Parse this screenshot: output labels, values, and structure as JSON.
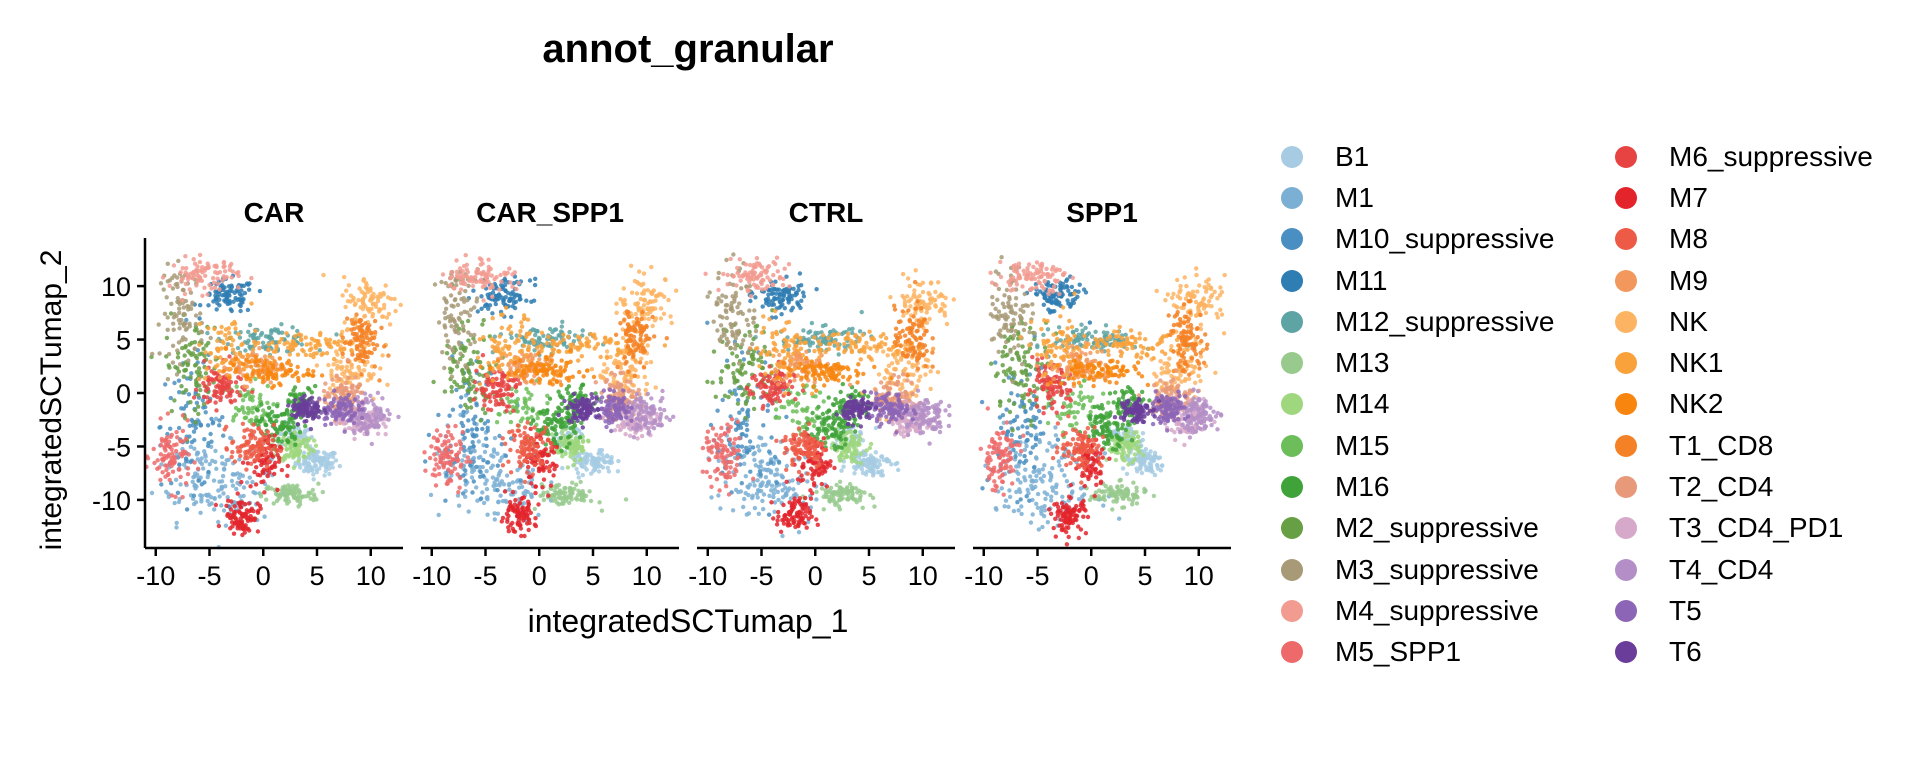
{
  "chart_data": {
    "type": "scatter",
    "title": "annot_granular",
    "xlabel": "integratedSCTumap_1",
    "ylabel": "integratedSCTumap_2",
    "xlim": [
      -11,
      13
    ],
    "ylim": [
      -14.5,
      14.5
    ],
    "xticks": [
      -10,
      -5,
      0,
      5,
      10
    ],
    "yticks": [
      10,
      5,
      0,
      -5,
      -10
    ],
    "xtick_labels": [
      "-10",
      "-5",
      "0",
      "5",
      "10"
    ],
    "ytick_labels": [
      "10",
      "5",
      "0",
      "-5",
      "-10"
    ],
    "grid": false,
    "legend_position": "right",
    "panels": [
      "CAR",
      "CAR_SPP1",
      "CTRL",
      "SPP1"
    ],
    "series": [
      {
        "name": "B1",
        "color": "#a6cbe3",
        "clusters": [
          {
            "x": 5.0,
            "y": -6.5,
            "sx": 1.0,
            "sy": 0.6,
            "w": 1.0
          },
          {
            "x": 3.0,
            "y": -4.0,
            "sx": 0.8,
            "sy": 0.6,
            "w": 0.4
          }
        ]
      },
      {
        "name": "M1",
        "color": "#7bafd4",
        "clusters": [
          {
            "x": -6.0,
            "y": -7.5,
            "sx": 2.0,
            "sy": 2.2,
            "w": 1.0
          },
          {
            "x": -2.5,
            "y": -9.0,
            "sx": 1.6,
            "sy": 1.6,
            "w": 0.7
          }
        ]
      },
      {
        "name": "M10_suppressive",
        "color": "#4a8fc1",
        "clusters": [
          {
            "x": -6.5,
            "y": -3.0,
            "sx": 1.5,
            "sy": 3.0,
            "w": 1.0
          }
        ]
      },
      {
        "name": "M11",
        "color": "#2e7db3",
        "clusters": [
          {
            "x": -3.2,
            "y": 9.0,
            "sx": 1.2,
            "sy": 0.8,
            "w": 1.0
          }
        ]
      },
      {
        "name": "M12_suppressive",
        "color": "#5ea4a5",
        "clusters": [
          {
            "x": 0.5,
            "y": 5.0,
            "sx": 2.0,
            "sy": 0.6,
            "w": 1.0
          }
        ]
      },
      {
        "name": "M13",
        "color": "#98ca8e",
        "clusters": [
          {
            "x": 2.5,
            "y": -9.5,
            "sx": 1.3,
            "sy": 0.5,
            "w": 1.0
          }
        ]
      },
      {
        "name": "M14",
        "color": "#9fd77f",
        "clusters": [
          {
            "x": 3.0,
            "y": -5.0,
            "sx": 0.8,
            "sy": 0.7,
            "w": 1.0
          }
        ]
      },
      {
        "name": "M15",
        "color": "#6dbe5a",
        "clusters": [
          {
            "x": -1.5,
            "y": -1.5,
            "sx": 1.2,
            "sy": 1.2,
            "w": 0.6
          }
        ]
      },
      {
        "name": "M16",
        "color": "#3fa33a",
        "clusters": [
          {
            "x": 1.5,
            "y": -3.0,
            "sx": 1.0,
            "sy": 1.0,
            "w": 1.0
          },
          {
            "x": 3.5,
            "y": -1.0,
            "sx": 0.8,
            "sy": 0.8,
            "w": 0.6
          }
        ]
      },
      {
        "name": "M2_suppressive",
        "color": "#669f44",
        "clusters": [
          {
            "x": -6.5,
            "y": 2.5,
            "sx": 1.3,
            "sy": 2.2,
            "w": 1.0
          }
        ]
      },
      {
        "name": "M3_suppressive",
        "color": "#a89a77",
        "clusters": [
          {
            "x": -7.5,
            "y": 7.5,
            "sx": 1.0,
            "sy": 2.2,
            "w": 1.0
          }
        ]
      },
      {
        "name": "M4_suppressive",
        "color": "#f29b90",
        "clusters": [
          {
            "x": -5.5,
            "y": 11.0,
            "sx": 1.6,
            "sy": 0.8,
            "w": 1.0
          }
        ]
      },
      {
        "name": "M5_SPP1",
        "color": "#ee6a6a",
        "clusters": [
          {
            "x": -8.5,
            "y": -6.0,
            "sx": 0.9,
            "sy": 1.5,
            "w": 1.0
          }
        ]
      },
      {
        "name": "M6_suppressive",
        "color": "#e84343",
        "clusters": [
          {
            "x": -4.0,
            "y": 0.5,
            "sx": 1.0,
            "sy": 1.0,
            "w": 1.0
          }
        ]
      },
      {
        "name": "M7",
        "color": "#e3242b",
        "clusters": [
          {
            "x": -2.0,
            "y": -11.5,
            "sx": 0.8,
            "sy": 0.8,
            "w": 1.0
          },
          {
            "x": 0.0,
            "y": -6.5,
            "sx": 0.8,
            "sy": 1.2,
            "w": 0.8
          }
        ]
      },
      {
        "name": "M8",
        "color": "#ed5a45",
        "clusters": [
          {
            "x": -1.0,
            "y": -5.0,
            "sx": 1.0,
            "sy": 1.0,
            "w": 1.0
          }
        ]
      },
      {
        "name": "M9",
        "color": "#f2985d",
        "clusters": [
          {
            "x": -1.0,
            "y": 2.5,
            "sx": 1.5,
            "sy": 0.8,
            "w": 1.0
          }
        ]
      },
      {
        "name": "NK",
        "color": "#fdb462",
        "clusters": [
          {
            "x": 10.0,
            "y": 8.5,
            "sx": 1.3,
            "sy": 1.2,
            "w": 1.0
          },
          {
            "x": 8.0,
            "y": 2.0,
            "sx": 1.3,
            "sy": 1.5,
            "w": 1.0
          }
        ]
      },
      {
        "name": "NK1",
        "color": "#f9a23b",
        "clusters": [
          {
            "x": 3.5,
            "y": 4.5,
            "sx": 3.0,
            "sy": 0.6,
            "w": 1.0
          },
          {
            "x": -3.0,
            "y": 4.0,
            "sx": 1.2,
            "sy": 1.6,
            "w": 0.7
          }
        ]
      },
      {
        "name": "NK2",
        "color": "#f8860e",
        "clusters": [
          {
            "x": 0.5,
            "y": 2.0,
            "sx": 2.0,
            "sy": 0.6,
            "w": 1.0
          }
        ]
      },
      {
        "name": "T1_CD8",
        "color": "#f48125",
        "clusters": [
          {
            "x": 9.0,
            "y": 5.0,
            "sx": 0.8,
            "sy": 1.5,
            "w": 1.0
          }
        ]
      },
      {
        "name": "T2_CD4",
        "color": "#e8997a",
        "clusters": [
          {
            "x": 7.5,
            "y": -0.5,
            "sx": 1.0,
            "sy": 1.0,
            "w": 1.0
          }
        ]
      },
      {
        "name": "T3_CD4_PD1",
        "color": "#d6a8c9",
        "clusters": [
          {
            "x": 9.0,
            "y": -2.5,
            "sx": 1.0,
            "sy": 0.8,
            "w": 1.0
          }
        ]
      },
      {
        "name": "T4_CD4",
        "color": "#b48fc7",
        "clusters": [
          {
            "x": 10.0,
            "y": -2.0,
            "sx": 1.0,
            "sy": 0.9,
            "w": 1.0
          }
        ]
      },
      {
        "name": "T5",
        "color": "#8c65b6",
        "clusters": [
          {
            "x": 7.0,
            "y": -1.5,
            "sx": 0.9,
            "sy": 0.7,
            "w": 1.0
          }
        ]
      },
      {
        "name": "T6",
        "color": "#6a3d9a",
        "clusters": [
          {
            "x": 4.0,
            "y": -1.5,
            "sx": 0.7,
            "sy": 0.6,
            "w": 1.0
          }
        ]
      }
    ]
  }
}
